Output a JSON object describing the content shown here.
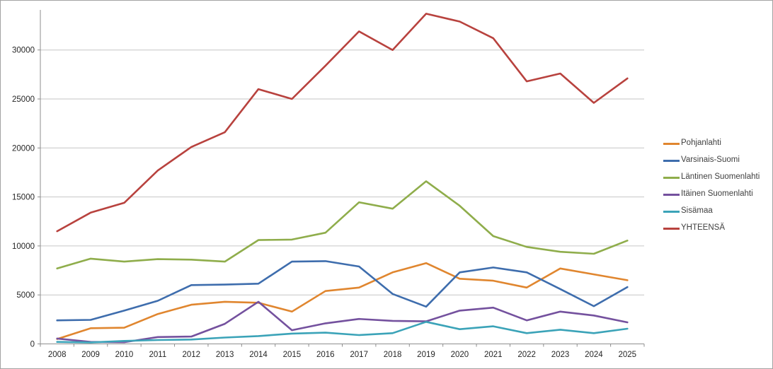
{
  "chart_data": {
    "type": "line",
    "title": "",
    "xlabel": "",
    "ylabel": "",
    "x": [
      "2008",
      "2009",
      "2010",
      "2011",
      "2012",
      "2013",
      "2014",
      "2015",
      "2016",
      "2017",
      "2018",
      "2019",
      "2020",
      "2021",
      "2022",
      "2023",
      "2024",
      "2025"
    ],
    "ylim": [
      0,
      34000
    ],
    "y_ticks": [
      0,
      5000,
      10000,
      15000,
      20000,
      25000,
      30000
    ],
    "grid": true,
    "legend_position": "right",
    "series": [
      {
        "name": "Pohjanlahti",
        "color": "#E0862F",
        "values": [
          500,
          1600,
          1650,
          3050,
          4000,
          4300,
          4200,
          3300,
          5400,
          5750,
          7300,
          8250,
          6650,
          6450,
          5750,
          7700,
          7100,
          6500
        ]
      },
      {
        "name": "Varsinais-Suomi",
        "color": "#3E6DAD",
        "values": [
          2400,
          2450,
          3400,
          4400,
          6000,
          6050,
          6150,
          8400,
          8450,
          7900,
          5100,
          3800,
          7300,
          7800,
          7300,
          5600,
          3850,
          5800
        ]
      },
      {
        "name": "Läntinen Suomenlahti",
        "color": "#8FAD4B",
        "values": [
          7700,
          8700,
          8400,
          8650,
          8600,
          8400,
          10600,
          10650,
          11350,
          14450,
          13800,
          16600,
          14100,
          11000,
          9900,
          9400,
          9200,
          10550
        ]
      },
      {
        "name": "Itäinen Suomenlahti",
        "color": "#74519E",
        "values": [
          550,
          200,
          170,
          700,
          750,
          2050,
          4300,
          1400,
          2100,
          2550,
          2350,
          2300,
          3400,
          3700,
          2400,
          3300,
          2900,
          2200
        ]
      },
      {
        "name": "Sisämaa",
        "color": "#3BA3B8",
        "values": [
          200,
          150,
          300,
          400,
          450,
          650,
          800,
          1050,
          1150,
          900,
          1100,
          2250,
          1500,
          1800,
          1100,
          1450,
          1100,
          1550
        ]
      },
      {
        "name": "YHTEENSÄ",
        "color": "#B8423E",
        "values": [
          11500,
          13400,
          14400,
          17700,
          20100,
          21600,
          26000,
          25000,
          28400,
          31900,
          30000,
          33700,
          32900,
          31200,
          26800,
          27600,
          24600,
          27100
        ]
      }
    ],
    "style": {
      "gridline_color": "#C6C6C6",
      "axis_color": "#8E8E8E",
      "tick_label_color": "#262626",
      "background": "#FFFFFF"
    }
  }
}
